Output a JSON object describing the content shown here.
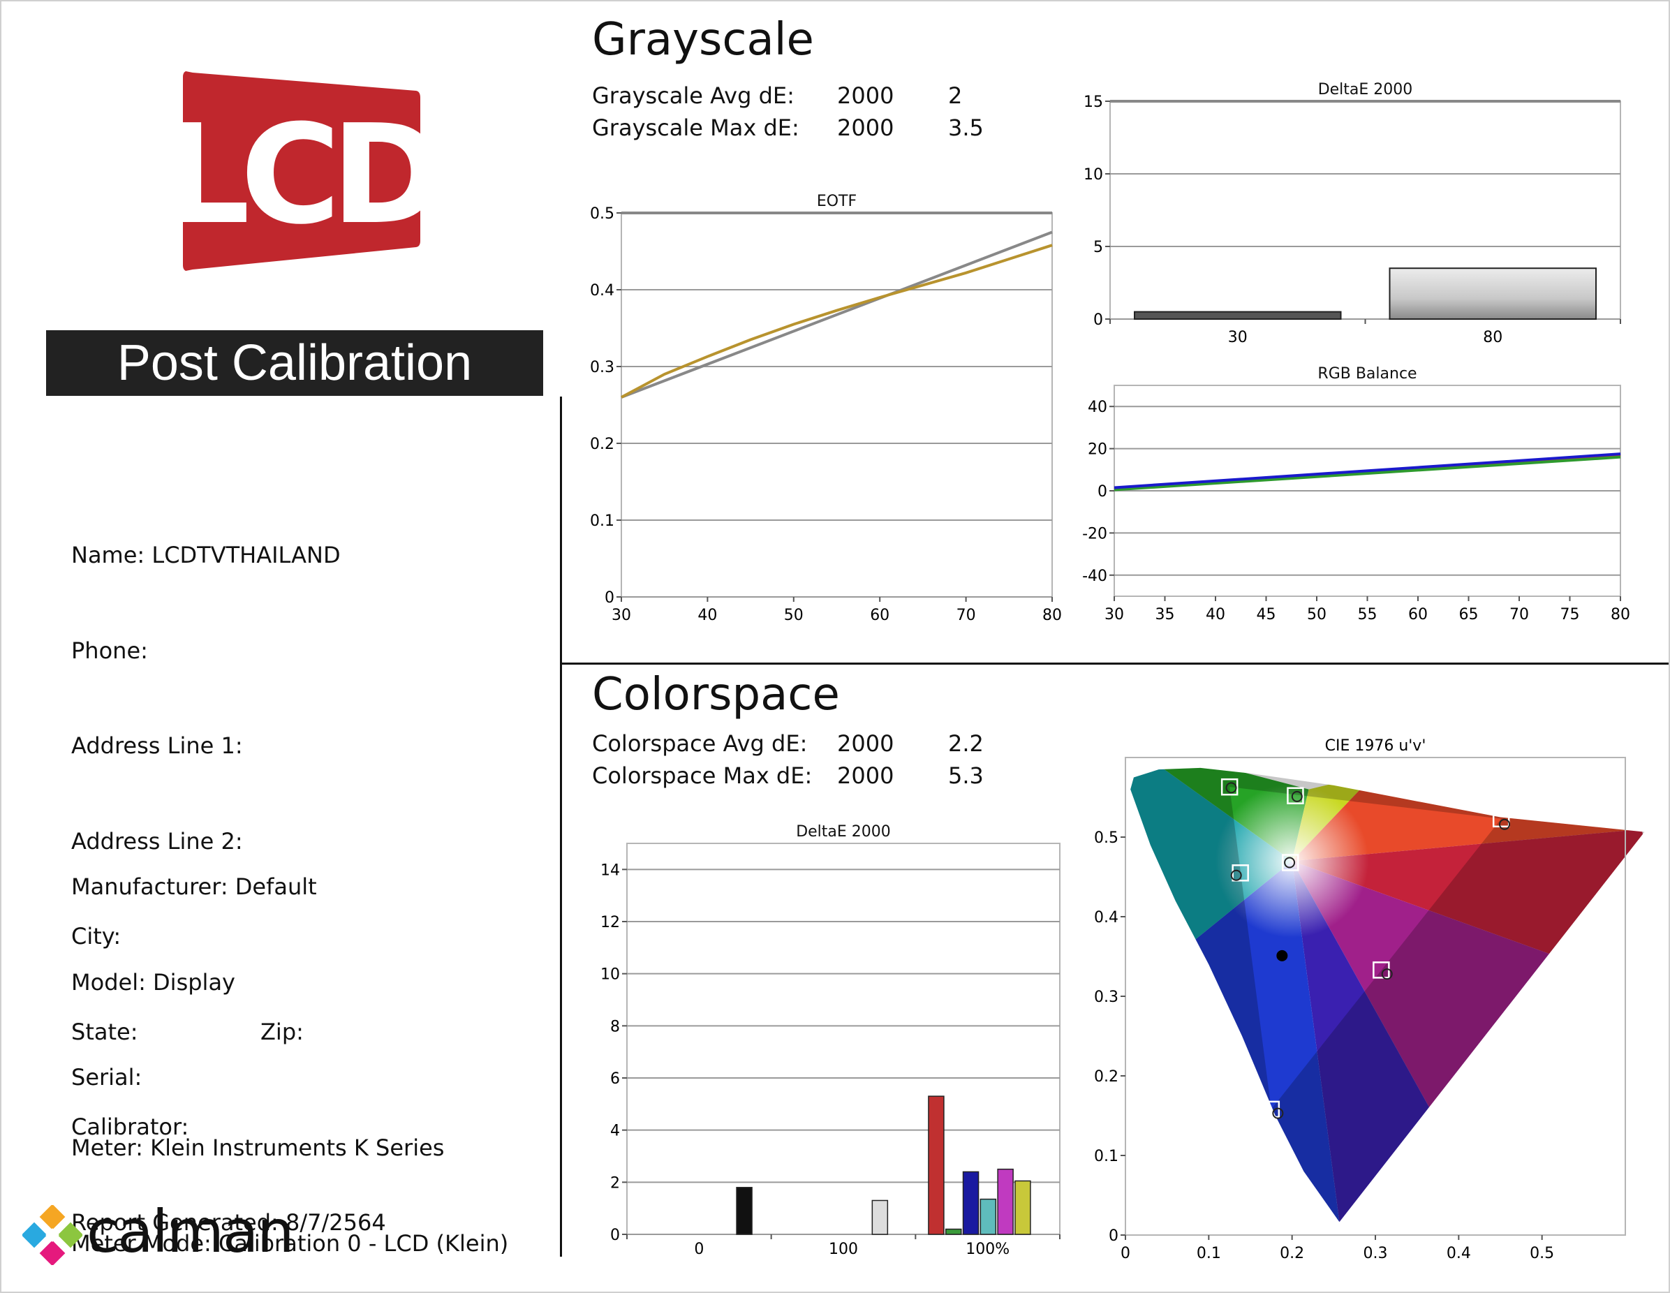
{
  "logo": {
    "text": "LCD",
    "brand_color": "#c0272d"
  },
  "banner": {
    "text": "Post Calibration"
  },
  "info": {
    "name": "Name: LCDTVTHAILAND",
    "phone": "Phone:",
    "address1": "Address Line 1:",
    "address2": "Address Line 2:",
    "city": "City:",
    "state": "State:",
    "zip": "Zip:",
    "calibrator": "Calibrator:",
    "report": "Report Generated: 8/7/2564",
    "manufacturer": "Manufacturer: Default",
    "model": "Model: Display",
    "serial": "Serial:",
    "meter": "Meter: Klein Instruments K Series",
    "meter_mode": "Meter Mode: Calibration 0 - LCD (Klein)"
  },
  "footer": {
    "brand": "calman"
  },
  "grayscale": {
    "title": "Grayscale",
    "avg_label": "Grayscale Avg dE:",
    "avg_std": "2000",
    "avg_val": "2",
    "max_label": "Grayscale Max dE:",
    "max_std": "2000",
    "max_val": "3.5"
  },
  "colorspace": {
    "title": "Colorspace",
    "avg_label": "Colorspace Avg dE:",
    "avg_std": "2000",
    "avg_val": "2.2",
    "max_label": "Colorspace Max dE:",
    "max_std": "2000",
    "max_val": "5.3"
  },
  "chart_data": [
    {
      "id": "eotf",
      "type": "line",
      "title": "EOTF",
      "xlim": [
        30,
        80
      ],
      "ylim": [
        0,
        0.5
      ],
      "xticks": [
        "30",
        "40",
        "50",
        "60",
        "70",
        "80"
      ],
      "yticks": [
        "0",
        "0.1",
        "0.2",
        "0.3",
        "0.4",
        "0.5"
      ],
      "series": [
        {
          "color": "#888888",
          "x": [
            30,
            80
          ],
          "y": [
            0.26,
            0.475
          ]
        },
        {
          "color": "#b8932e",
          "x": [
            30,
            35,
            40,
            45,
            50,
            55,
            60,
            65,
            70,
            75,
            80
          ],
          "y": [
            0.26,
            0.29,
            0.313,
            0.335,
            0.355,
            0.373,
            0.39,
            0.406,
            0.422,
            0.44,
            0.458
          ]
        }
      ]
    },
    {
      "id": "gray_de",
      "type": "bar",
      "title": "DeltaE 2000",
      "categories": [
        "30",
        "80"
      ],
      "values": [
        0.5,
        3.5
      ],
      "ylim": [
        0,
        15
      ],
      "yticks": [
        "0",
        "5",
        "10",
        "15"
      ],
      "bar_colors": [
        "#555555",
        "#cccccc"
      ]
    },
    {
      "id": "rgb",
      "type": "line",
      "title": "RGB Balance",
      "xlim": [
        30,
        80
      ],
      "ylim": [
        -50,
        50
      ],
      "xticks": [
        "30",
        "35",
        "40",
        "45",
        "50",
        "55",
        "60",
        "65",
        "70",
        "75",
        "80"
      ],
      "yticks": [
        "40",
        "20",
        "0",
        "-20",
        "-40"
      ],
      "series": [
        {
          "color": "#e03030",
          "x": [
            30,
            80
          ],
          "y": [
            1,
            17
          ]
        },
        {
          "color": "#2e9a2e",
          "x": [
            30,
            80
          ],
          "y": [
            0.5,
            16
          ]
        },
        {
          "color": "#1a1acc",
          "x": [
            30,
            80
          ],
          "y": [
            1.5,
            17.5
          ]
        }
      ]
    },
    {
      "id": "color_de",
      "type": "bar",
      "title": "DeltaE 2000",
      "ylim": [
        0,
        15
      ],
      "yticks": [
        "0",
        "2",
        "4",
        "6",
        "8",
        "10",
        "12",
        "14"
      ],
      "group_labels": [
        "0",
        "100",
        "100%"
      ],
      "bars": [
        {
          "group": 0,
          "value": 1.8,
          "color": "#111111"
        },
        {
          "group": 1,
          "value": 1.3,
          "color": "#dddddd"
        },
        {
          "group": 2,
          "value": 5.3,
          "color": "#c03030"
        },
        {
          "group": 2,
          "value": 0.2,
          "color": "#3a9a3a"
        },
        {
          "group": 2,
          "value": 2.4,
          "color": "#1a1aa0"
        },
        {
          "group": 2,
          "value": 1.35,
          "color": "#5fbcbc"
        },
        {
          "group": 2,
          "value": 2.5,
          "color": "#c03ac0"
        },
        {
          "group": 2,
          "value": 2.05,
          "color": "#c8c83a"
        }
      ]
    },
    {
      "id": "cie",
      "type": "scatter",
      "title": "CIE 1976 u'v'",
      "xlim": [
        0,
        0.6
      ],
      "ylim": [
        0,
        0.6
      ],
      "xticks": [
        "0",
        "0.1",
        "0.2",
        "0.3",
        "0.4",
        "0.5"
      ],
      "yticks": [
        "0",
        "0.1",
        "0.2",
        "0.3",
        "0.4",
        "0.5"
      ],
      "gamut_triangle": [
        [
          0.451,
          0.523
        ],
        [
          0.125,
          0.563
        ],
        [
          0.175,
          0.158
        ]
      ],
      "targets": [
        [
          0.451,
          0.523
        ],
        [
          0.125,
          0.563
        ],
        [
          0.175,
          0.158
        ],
        [
          0.204,
          0.552
        ],
        [
          0.307,
          0.333
        ],
        [
          0.138,
          0.455
        ],
        [
          0.198,
          0.468
        ]
      ],
      "measured": [
        [
          0.455,
          0.516
        ],
        [
          0.127,
          0.562
        ],
        [
          0.183,
          0.153
        ],
        [
          0.206,
          0.551
        ],
        [
          0.314,
          0.328
        ],
        [
          0.133,
          0.452
        ],
        [
          0.197,
          0.468
        ]
      ],
      "white_point": [
        0.188,
        0.351
      ]
    }
  ]
}
